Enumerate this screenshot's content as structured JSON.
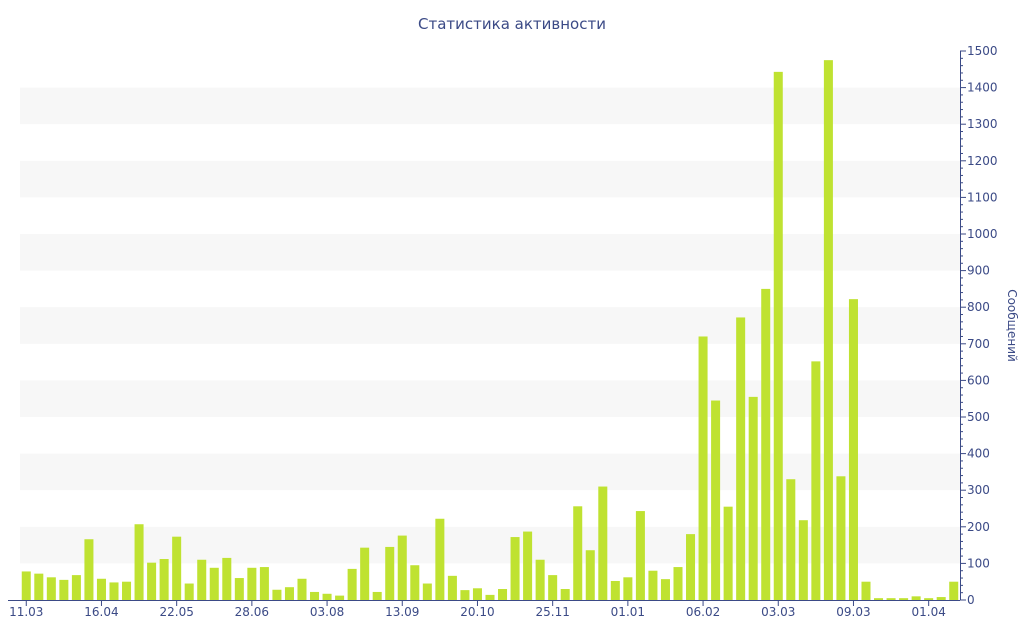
{
  "colors": {
    "bar": "#bfe231",
    "band": "#f7f7f7",
    "axis": "#3b4a86",
    "text": "#3b4a86"
  },
  "chart_data": {
    "type": "bar",
    "title": "Статистика активности",
    "xlabel": "",
    "ylabel": "Сообщений",
    "y_axis_side": "right",
    "ylim": [
      0,
      1500
    ],
    "y_ticks": [
      0,
      100,
      200,
      300,
      400,
      500,
      600,
      700,
      800,
      900,
      1000,
      1100,
      1200,
      1300,
      1400,
      1500
    ],
    "x_tick_labels": [
      {
        "label": "11.03",
        "index": 0
      },
      {
        "label": "16.04",
        "index": 6
      },
      {
        "label": "22.05",
        "index": 12
      },
      {
        "label": "28.06",
        "index": 18
      },
      {
        "label": "03.08",
        "index": 24
      },
      {
        "label": "13.09",
        "index": 30
      },
      {
        "label": "20.10",
        "index": 36
      },
      {
        "label": "25.11",
        "index": 42
      },
      {
        "label": "01.01",
        "index": 48
      },
      {
        "label": "06.02",
        "index": 54
      },
      {
        "label": "03.03",
        "index": 60
      },
      {
        "label": "09.03",
        "index": 66
      },
      {
        "label": "01.04",
        "index": 72
      }
    ],
    "grid": "alternating bands",
    "series": [
      {
        "values": [
          78,
          72,
          62,
          55,
          68,
          166,
          58,
          48,
          50,
          207,
          102,
          112,
          173,
          45,
          110,
          88,
          115,
          60,
          88,
          90,
          28,
          35,
          58,
          22,
          17,
          12,
          85,
          143,
          22,
          145,
          176,
          95,
          45,
          222,
          66,
          27,
          32,
          14,
          30,
          172,
          187,
          110,
          68,
          30,
          256,
          136,
          310,
          52,
          62,
          243,
          80,
          57,
          90,
          180,
          720,
          545,
          255,
          772,
          555,
          850,
          1443,
          330,
          218,
          652,
          1475,
          338,
          822,
          50,
          5,
          5,
          5,
          10,
          5,
          8,
          50
        ]
      }
    ]
  }
}
